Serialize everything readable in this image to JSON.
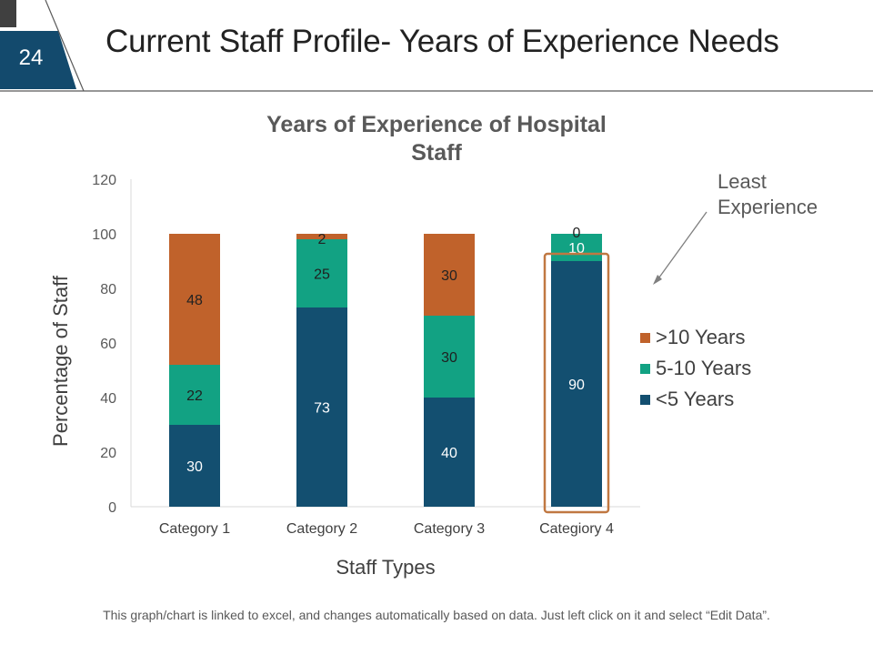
{
  "slide": {
    "number": "24",
    "title": "Current Staff Profile- Years of Experience Needs",
    "footnote": "This graph/chart is linked to excel, and changes automatically based on data. Just left click on it and select “Edit Data”.",
    "annotation": "Least Experience",
    "colors": {
      "badge": "#134a6d",
      "highlight": "#c07842"
    }
  },
  "chart_data": {
    "type": "bar",
    "stacked": true,
    "title": "Years of Experience of Hospital Staff",
    "xlabel": "Staff Types",
    "ylabel": "Percentage of Staff",
    "ylim": [
      0,
      120
    ],
    "yticks": [
      "0",
      "20",
      "40",
      "60",
      "80",
      "100",
      "120"
    ],
    "categories": [
      "Category 1",
      "Category 2",
      "Category 3",
      "Categiory 4"
    ],
    "series": [
      {
        "name": "<5 Years",
        "values": [
          30,
          73,
          40,
          90
        ],
        "color": "#134f70"
      },
      {
        "name": "5-10 Years",
        "values": [
          22,
          25,
          30,
          10
        ],
        "color": "#12a283"
      },
      {
        "name": ">10 Years",
        "values": [
          48,
          2,
          30,
          0
        ],
        "color": "#c0622b"
      }
    ],
    "legend": [
      {
        "name": ">10 Years",
        "color": "#c0622b"
      },
      {
        "name": "5-10 Years",
        "color": "#12a283"
      },
      {
        "name": "<5 Years",
        "color": "#134f70"
      }
    ],
    "highlighted_category": "Categiory 4",
    "legend_position": "right"
  }
}
